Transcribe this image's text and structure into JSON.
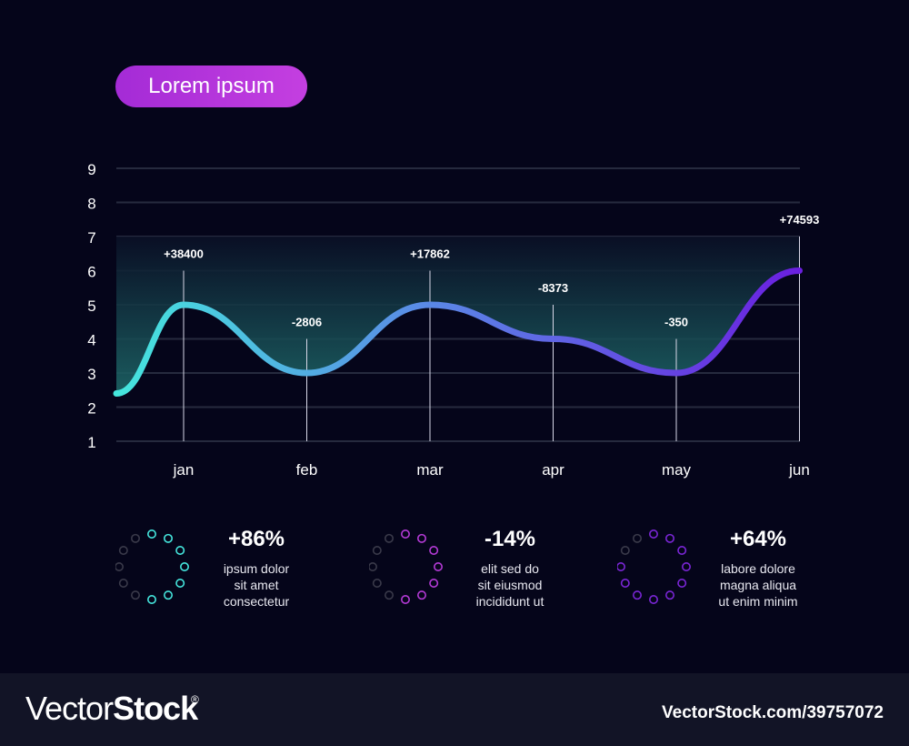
{
  "badge": {
    "label": "Lorem ipsum"
  },
  "chart_data": {
    "type": "line",
    "categories": [
      "jan",
      "feb",
      "mar",
      "apr",
      "may",
      "jun"
    ],
    "x": [
      0,
      1,
      2,
      3,
      4,
      5
    ],
    "values": [
      5,
      3,
      5,
      4,
      3,
      6
    ],
    "start_value": 2.4,
    "ylim": [
      1,
      9
    ],
    "yticks": [
      "1",
      "2",
      "3",
      "4",
      "5",
      "6",
      "7",
      "8",
      "9"
    ],
    "grid": true,
    "annotations": [
      {
        "category": "jan",
        "label": "+38400",
        "level": 6
      },
      {
        "category": "feb",
        "label": "-2806",
        "level": 4
      },
      {
        "category": "mar",
        "label": "+17862",
        "level": 6
      },
      {
        "category": "apr",
        "label": "-8373",
        "level": 5
      },
      {
        "category": "may",
        "label": "-350",
        "level": 4
      },
      {
        "category": "jun",
        "label": "+74593",
        "level": 7
      }
    ],
    "colors": {
      "start": "#45e6dd",
      "mid": "#5a8ae6",
      "end": "#6a1fe0",
      "grid": "#262a3e",
      "fill": "#1e6a6a"
    }
  },
  "stats": [
    {
      "value": "+86%",
      "lines": [
        "ipsum dolor",
        "sit amet",
        "consectetur"
      ],
      "color": "#45e6dd",
      "lit": 7
    },
    {
      "value": "-14%",
      "lines": [
        "elit sed do",
        "sit eiusmod",
        "incididunt ut"
      ],
      "color": "#b43ad6",
      "lit": 7
    },
    {
      "value": "+64%",
      "lines": [
        "labore dolore",
        "magna aliqua",
        "ut enim minim"
      ],
      "color": "#7a26d6",
      "lit": 10
    }
  ],
  "stat_dim_color": "#3a3a4a",
  "footer": {
    "brand_vector": "Vector",
    "brand_stock": "Stock",
    "registered": "®",
    "image_id": "VectorStock.com/39757072"
  }
}
